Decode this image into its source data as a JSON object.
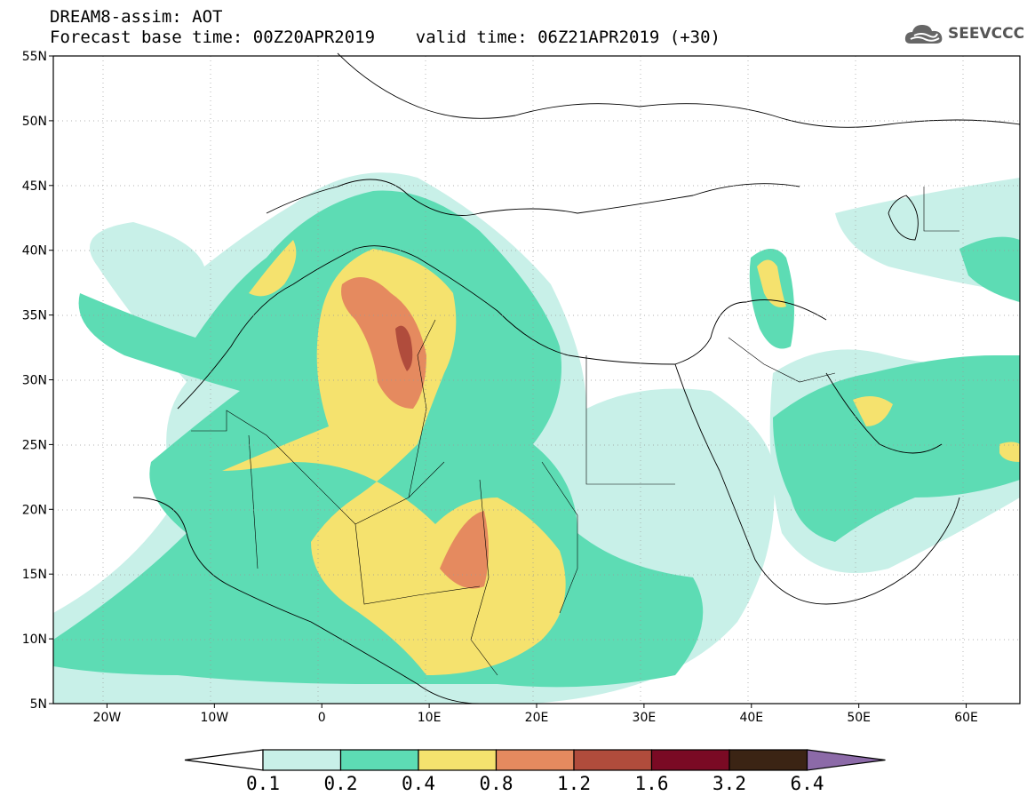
{
  "header": {
    "title": "DREAM8-assim: AOT",
    "subtitle": "Forecast base time: 00Z20APR2019    valid time: 06Z21APR2019 (+30)"
  },
  "logo": {
    "text": "SEEVCCC",
    "icon": "cloud-icon"
  },
  "map": {
    "lat_labels": [
      "55N",
      "50N",
      "45N",
      "40N",
      "35N",
      "30N",
      "25N",
      "20N",
      "15N",
      "10N",
      "5N"
    ],
    "lon_labels": [
      "20W",
      "10W",
      "0",
      "10E",
      "20E",
      "30E",
      "40E",
      "50E",
      "60E"
    ],
    "lat_range": [
      5,
      55
    ],
    "lon_range": [
      -25,
      65
    ],
    "grid": "dotted"
  },
  "colorbar": {
    "labels": [
      "0.1",
      "0.2",
      "0.4",
      "0.8",
      "1.2",
      "1.6",
      "3.2",
      "6.4"
    ],
    "colors": [
      "#c8f0e8",
      "#5ddcb4",
      "#f5e26e",
      "#e58a5f",
      "#b04c3c",
      "#7a0a24",
      "#3b2414",
      "#8c6aa8"
    ],
    "under_color": "#ffffff"
  }
}
